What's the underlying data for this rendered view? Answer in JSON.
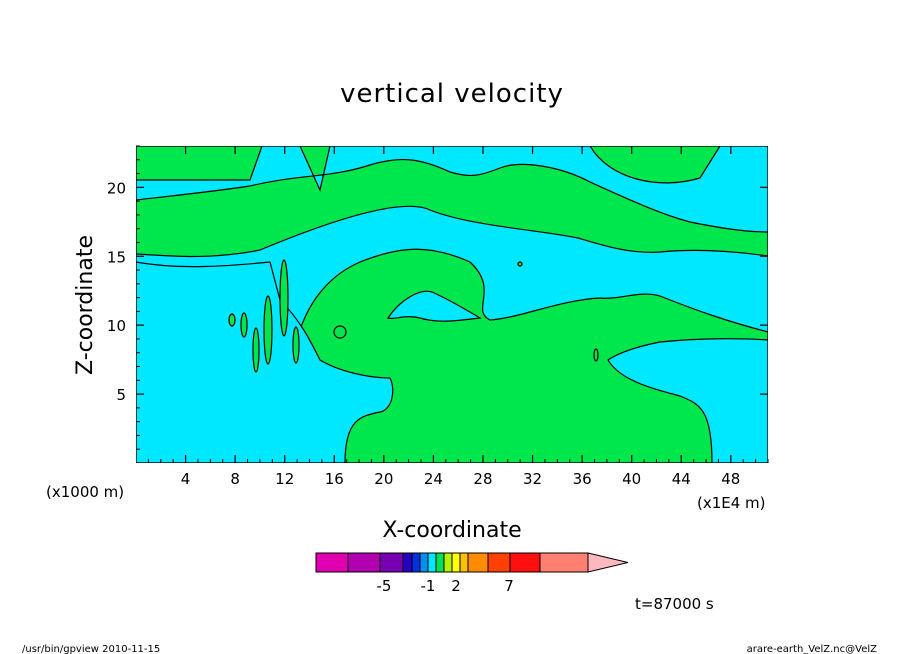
{
  "chart_data": {
    "type": "heatmap",
    "title": "vertical velocity",
    "xlabel": "X-coordinate",
    "ylabel": "Z-coordinate",
    "x_unit_left": "(x1000 m)",
    "x_unit_right": "(x1E4 m)",
    "xlim": [
      0,
      51
    ],
    "ylim": [
      0,
      23
    ],
    "x_ticks": [
      4,
      8,
      12,
      16,
      20,
      24,
      28,
      32,
      36,
      40,
      44,
      48
    ],
    "y_ticks": [
      5,
      10,
      15,
      20
    ],
    "grid": false,
    "colorbar": {
      "colors": [
        "#e000b0",
        "#b000b0",
        "#7800b0",
        "#2800c0",
        "#0030e0",
        "#0090f0",
        "#00e8ff",
        "#00e050",
        "#b8f000",
        "#ffff00",
        "#ffc000",
        "#ff8c00",
        "#ff4000",
        "#ff1010",
        "#ff8070",
        "#ffb8c0"
      ],
      "tick_labels": [
        {
          "text": "-5",
          "value": -5
        },
        {
          "text": "-1",
          "value": -1
        },
        {
          "text": "2",
          "value": 2
        },
        {
          "text": "7",
          "value": 7
        }
      ]
    },
    "field_colors": {
      "positive": "#00e64d",
      "negative": "#00e8ff"
    },
    "annotation": "t=87000 s"
  },
  "footer": {
    "left": "/usr/bin/gpview   2010-11-15",
    "right": "arare-earth_VelZ.nc@VelZ"
  }
}
